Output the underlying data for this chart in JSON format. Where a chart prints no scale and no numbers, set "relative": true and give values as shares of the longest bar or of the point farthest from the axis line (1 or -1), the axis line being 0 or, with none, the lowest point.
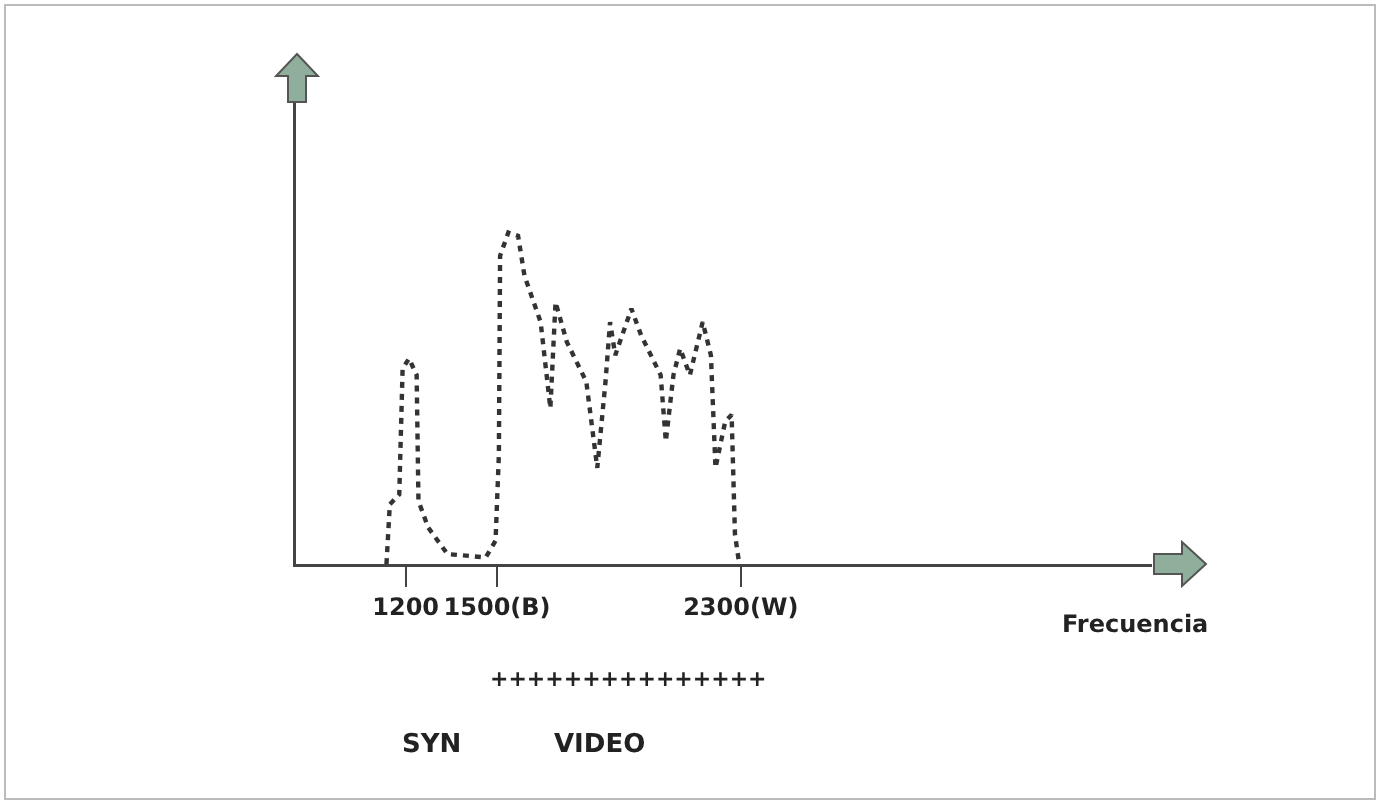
{
  "chart_data": {
    "type": "line",
    "relative": true,
    "xlabel": "Frecuencia",
    "color": "#333333",
    "x": [
      1137,
      1148,
      1179,
      1190,
      1211,
      1236,
      1242,
      1274,
      1337,
      1463,
      1495,
      1506,
      1510,
      1537,
      1569,
      1590,
      1643,
      1675,
      1692,
      1729,
      1793,
      1829,
      1856,
      1871,
      1888,
      1941,
      1973,
      2037,
      2054,
      2079,
      2101,
      2133,
      2175,
      2202,
      2217,
      2249,
      2270,
      2281,
      2295
    ],
    "values": [
      0,
      0.18,
      0.21,
      0.59,
      0.62,
      0.57,
      0.19,
      0.11,
      0.03,
      0.02,
      0.07,
      0.33,
      0.93,
      1.0,
      0.99,
      0.87,
      0.73,
      0.47,
      0.79,
      0.67,
      0.55,
      0.29,
      0.55,
      0.73,
      0.63,
      0.77,
      0.69,
      0.57,
      0.37,
      0.57,
      0.65,
      0.57,
      0.73,
      0.63,
      0.29,
      0.43,
      0.45,
      0.09,
      0
    ],
    "xlim": [
      840,
      3650
    ],
    "xticks": [
      1200,
      {
        "value": 1500,
        "label": "1500(B)"
      },
      {
        "value": 2300,
        "label": "2300(W)"
      }
    ],
    "tick_labels": "x",
    "line_style": "dotted",
    "marker": "none",
    "grid": false,
    "annotations": [
      "+++++++++++++++",
      "SYN",
      "VIDEO"
    ]
  }
}
